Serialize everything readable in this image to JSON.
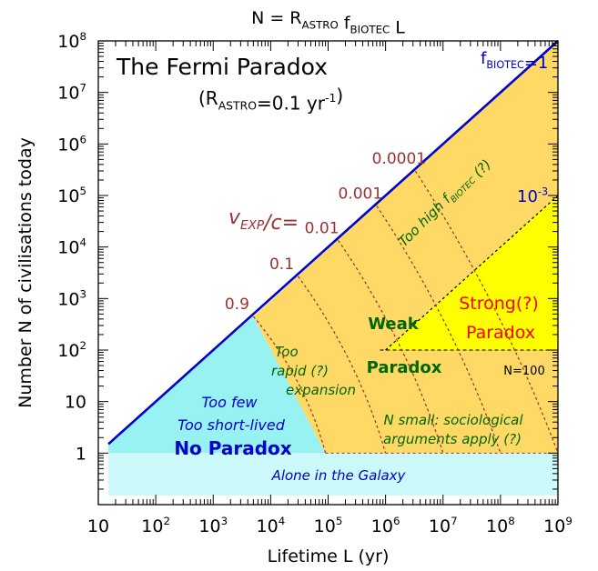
{
  "chart_data": {
    "type": "line",
    "title": "N = R_ASTRO f_BIOTEC L",
    "title_parts": {
      "lhs": "N = R",
      "r_sub": "ASTRO",
      "f": " f",
      "f_sub": "BIOTEC",
      "tail": " L"
    },
    "xlabel": "Lifetime L (yr)",
    "ylabel": "Number N of civilisations today",
    "xscale": "log",
    "yscale": "log",
    "xlim": [
      10,
      1000000000
    ],
    "ylim": [
      0.1,
      100000000
    ],
    "x_ticks": [
      {
        "value": 10,
        "base": "10",
        "exp": ""
      },
      {
        "value": 100,
        "base": "10",
        "exp": "2"
      },
      {
        "value": 1000,
        "base": "10",
        "exp": "3"
      },
      {
        "value": 10000,
        "base": "10",
        "exp": "4"
      },
      {
        "value": 100000,
        "base": "10",
        "exp": "5"
      },
      {
        "value": 1000000,
        "base": "10",
        "exp": "6"
      },
      {
        "value": 10000000,
        "base": "10",
        "exp": "7"
      },
      {
        "value": 100000000,
        "base": "10",
        "exp": "8"
      },
      {
        "value": 1000000000,
        "base": "10",
        "exp": "9"
      }
    ],
    "y_ticks": [
      {
        "value": 1,
        "base": "1",
        "exp": ""
      },
      {
        "value": 10,
        "base": "10",
        "exp": ""
      },
      {
        "value": 100,
        "base": "10",
        "exp": "2"
      },
      {
        "value": 1000,
        "base": "10",
        "exp": "3"
      },
      {
        "value": 10000,
        "base": "10",
        "exp": "4"
      },
      {
        "value": 100000,
        "base": "10",
        "exp": "5"
      },
      {
        "value": 1000000,
        "base": "10",
        "exp": "6"
      },
      {
        "value": 10000000,
        "base": "10",
        "exp": "7"
      },
      {
        "value": 100000000,
        "base": "10",
        "exp": "8"
      }
    ],
    "series": [
      {
        "name": "f_BIOTEC=1",
        "color": "#0000cc",
        "x": [
          15,
          1000000000
        ],
        "y": [
          1.5,
          100000000
        ]
      },
      {
        "name": "10^-3",
        "color": "#000000",
        "x": [
          1000000,
          1000000000
        ],
        "y": [
          100,
          100000
        ]
      }
    ],
    "expansion_lines": [
      {
        "label": "0.9",
        "top": [
          5000,
          450
        ],
        "bottom": [
          90000,
          1
        ]
      },
      {
        "label": "0.1",
        "top": [
          30000,
          2700
        ],
        "bottom": [
          1000000,
          1
        ]
      },
      {
        "label": "0.01",
        "top": [
          150000,
          13500
        ],
        "bottom": [
          10000000,
          1
        ]
      },
      {
        "label": "0.001",
        "top": [
          700000,
          63000
        ],
        "bottom": [
          100000000,
          1
        ]
      },
      {
        "label": "0.0001",
        "top": [
          3300000,
          297000
        ],
        "bottom": [
          1000000000,
          1
        ]
      }
    ],
    "n100_line": {
      "y": 100,
      "x": [
        800000,
        1000000000
      ]
    },
    "colors": {
      "allowed_region": "#ffd966",
      "strong_region": "#ffff00",
      "no_paradox_region": "#99f2f2",
      "alone_band": "#ccfafa",
      "f_biotec_line": "#0000cc",
      "dotted_lines": "#a52a2a",
      "velocity_labels": "#993333",
      "green_text": "#006600",
      "strong_text": "#ff0000"
    },
    "panel_title": "The Fermi Paradox",
    "r_astro": {
      "pre": "(R",
      "sub": "ASTRO",
      "mid": "=0.1 yr",
      "sup": "-1",
      "post": ")"
    },
    "velocity_label": {
      "main": "v",
      "sub": "EXP",
      "post": "/c="
    },
    "f_biotec_label": {
      "f": "f",
      "sub": "BIOTEC",
      "post": "=1"
    },
    "f_biotec_3_label": {
      "base": "10",
      "sup": "-3"
    },
    "annotations": {
      "too_high_pre": "Too high f",
      "too_high_sub": "BIOTEC",
      "too_high_post": " (?)",
      "strong_1": "Strong(?)",
      "strong_2": "Paradox",
      "weak_1": "Weak",
      "weak_2": "Paradox",
      "n100": "N=100",
      "too_rapid_1": "Too",
      "too_rapid_2": "rapid (?)",
      "too_rapid_3": "expansion",
      "too_few_1": "Too few",
      "too_few_2": "Too short-lived",
      "no_paradox": "No   Paradox",
      "n_small_1": "N small: sociological",
      "n_small_2": "arguments apply (?)",
      "alone": "Alone in the Galaxy"
    }
  }
}
